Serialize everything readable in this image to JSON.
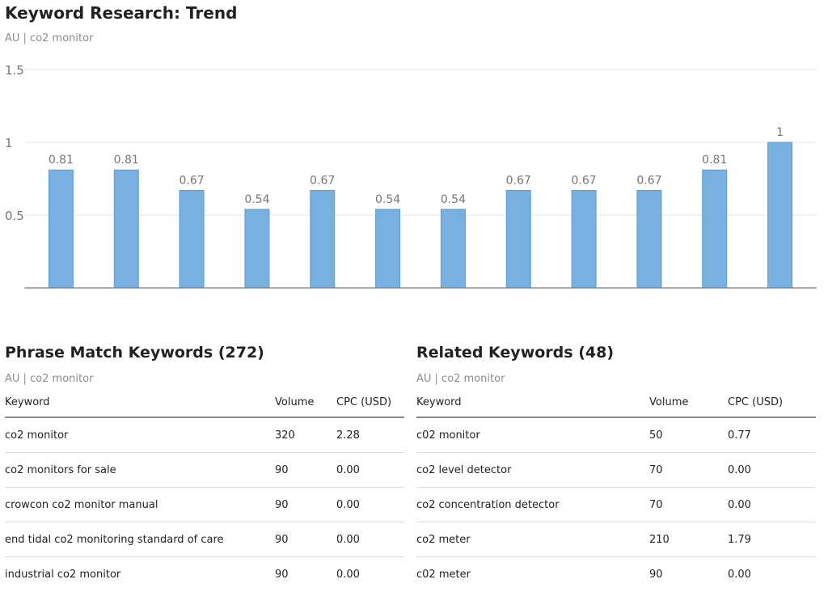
{
  "page": {
    "title": "Keyword Research: Trend",
    "subtitle": "AU | co2 monitor"
  },
  "chart_data": {
    "type": "bar",
    "categories": [
      "",
      "",
      "",
      "",
      "",
      "",
      "",
      "",
      "",
      "",
      "",
      ""
    ],
    "values": [
      0.81,
      0.81,
      0.67,
      0.54,
      0.67,
      0.54,
      0.54,
      0.67,
      0.67,
      0.67,
      0.81,
      1
    ],
    "value_labels": [
      "0.81",
      "0.81",
      "0.67",
      "0.54",
      "0.67",
      "0.54",
      "0.54",
      "0.67",
      "0.67",
      "0.67",
      "0.81",
      "1"
    ],
    "yticks": [
      0.5,
      1,
      1.5
    ],
    "ytick_labels": [
      "0.5",
      "1",
      "1.5"
    ],
    "ylim": [
      0,
      1.5
    ],
    "grid": true,
    "title": "",
    "xlabel": "",
    "ylabel": "",
    "colors": {
      "bar": "#78b1e0",
      "bar_edge": "#5a9bd4",
      "grid": "#e6e6e6",
      "axis": "#7a7a7a",
      "label": "#757575"
    }
  },
  "phrase_match": {
    "title": "Phrase Match Keywords (272)",
    "subtitle": "AU | co2 monitor",
    "columns": [
      "Keyword",
      "Volume",
      "CPC (USD)"
    ],
    "rows": [
      [
        "co2 monitor",
        "320",
        "2.28"
      ],
      [
        "co2 monitors for sale",
        "90",
        "0.00"
      ],
      [
        "crowcon co2 monitor manual",
        "90",
        "0.00"
      ],
      [
        "end tidal co2 monitoring standard of care",
        "90",
        "0.00"
      ],
      [
        "industrial co2 monitor",
        "90",
        "0.00"
      ]
    ]
  },
  "related": {
    "title": "Related Keywords (48)",
    "subtitle": "AU | co2 monitor",
    "columns": [
      "Keyword",
      "Volume",
      "CPC (USD)"
    ],
    "rows": [
      [
        "c02 monitor",
        "50",
        "0.77"
      ],
      [
        "co2 level detector",
        "70",
        "0.00"
      ],
      [
        "co2 concentration detector",
        "70",
        "0.00"
      ],
      [
        "co2 meter",
        "210",
        "1.79"
      ],
      [
        "c02 meter",
        "90",
        "0.00"
      ]
    ]
  }
}
